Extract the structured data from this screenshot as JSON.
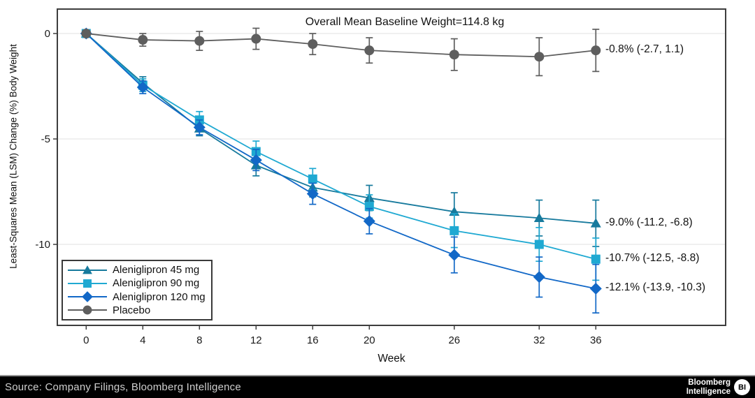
{
  "chart_data": {
    "type": "line",
    "title_annotation": "Overall Mean Baseline Weight=114.8 kg",
    "x_label": "Week",
    "y_label": "Least-Squares Mean (LSM) Change (%) Body Weight",
    "x": [
      0,
      4,
      8,
      12,
      16,
      20,
      26,
      32,
      36
    ],
    "x_ticks": [
      0,
      4,
      8,
      12,
      16,
      20,
      26,
      32,
      36
    ],
    "y_ticks": [
      0,
      -5,
      -10
    ],
    "xlim": [
      -2,
      45
    ],
    "ylim": [
      -15,
      1.2
    ],
    "grid": "horizontal-light",
    "legend_position": "bottom-left-inside",
    "error_bars": true,
    "series": [
      {
        "name": "Aleniglipron 45 mg",
        "marker": "triangle",
        "color": "#177a9d",
        "values": [
          0,
          -2.35,
          -4.5,
          -6.25,
          -7.3,
          -7.8,
          -8.45,
          -8.75,
          -9.0
        ],
        "errors": [
          0,
          0.3,
          0.35,
          0.5,
          0.45,
          0.6,
          0.9,
          0.85,
          1.1
        ],
        "end_label": "-9.0% (-11.2, -6.8)"
      },
      {
        "name": "Aleniglipron 90 mg",
        "marker": "square",
        "color": "#1fa9d2",
        "values": [
          0,
          -2.45,
          -4.1,
          -5.6,
          -6.9,
          -8.2,
          -9.35,
          -10.0,
          -10.7
        ],
        "errors": [
          0,
          0.3,
          0.4,
          0.5,
          0.5,
          0.55,
          0.8,
          0.8,
          1.0
        ],
        "end_label": "-10.7% (-12.5, -8.8)"
      },
      {
        "name": "Aleniglipron 120 mg",
        "marker": "diamond",
        "color": "#1268c7",
        "values": [
          0,
          -2.55,
          -4.45,
          -6.0,
          -7.6,
          -8.9,
          -10.5,
          -11.55,
          -12.1
        ],
        "errors": [
          0,
          0.3,
          0.35,
          0.5,
          0.5,
          0.6,
          0.85,
          0.95,
          1.15
        ],
        "end_label": "-12.1% (-13.9, -10.3)"
      },
      {
        "name": "Placebo",
        "marker": "circle",
        "color": "#5e5e5e",
        "values": [
          0,
          -0.3,
          -0.35,
          -0.25,
          -0.5,
          -0.8,
          -1.0,
          -1.1,
          -0.8
        ],
        "errors": [
          0,
          0.3,
          0.45,
          0.5,
          0.5,
          0.6,
          0.75,
          0.9,
          1.0
        ],
        "end_label": "-0.8% (-2.7, 1.1)"
      }
    ],
    "colors": {
      "gridline": "#ebebeb",
      "axis_border": "#3d3d3d",
      "tick_text": "#1a1a1a"
    }
  },
  "footer": {
    "source": "Source: Company Filings, Bloomberg Intelligence",
    "logo_line1": "Bloomberg",
    "logo_line2": "Intelligence",
    "badge": "BI"
  }
}
